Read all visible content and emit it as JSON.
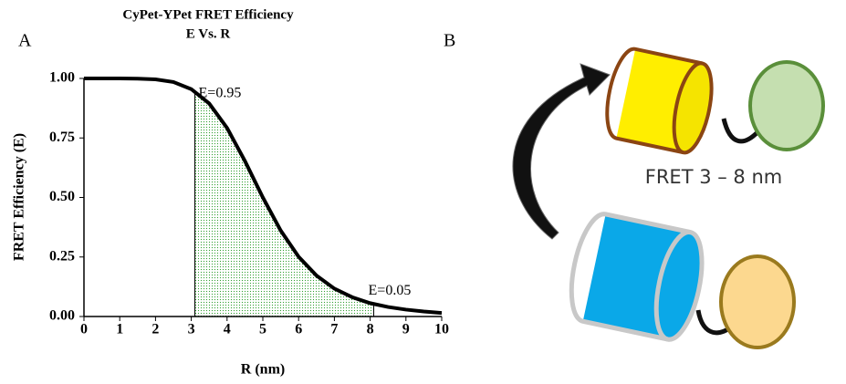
{
  "chart_data": {
    "type": "line",
    "title": "CyPet-YPet FRET  Efficiency",
    "subtitle": "E Vs. R",
    "x_label": "R (nm)",
    "y_label": "FRET Efficiency  (E)",
    "x": [
      0,
      0.5,
      1,
      1.5,
      2,
      2.5,
      3,
      3.5,
      4,
      4.5,
      5,
      5.5,
      6,
      6.5,
      7,
      7.5,
      8,
      8.5,
      9,
      9.5,
      10
    ],
    "series": [
      {
        "color": "#000000",
        "values": [
          1,
          1.0,
          1.0,
          0.999,
          0.996,
          0.985,
          0.955,
          0.895,
          0.792,
          0.653,
          0.5,
          0.361,
          0.251,
          0.172,
          0.117,
          0.081,
          0.056,
          0.04,
          0.029,
          0.021,
          0.015
        ]
      }
    ],
    "xlim": [
      0,
      10
    ],
    "ylim": [
      0,
      1
    ],
    "xticks": [
      0,
      1,
      2,
      3,
      4,
      5,
      6,
      7,
      8,
      9,
      10
    ],
    "yticks": [
      {
        "value": 0,
        "label": "0.00"
      },
      {
        "value": 0.25,
        "label": "0.25"
      },
      {
        "value": 0.5,
        "label": "0.50"
      },
      {
        "value": 0.75,
        "label": "0.75"
      },
      {
        "value": 1,
        "label": "1.00"
      }
    ],
    "shade_range": [
      3.1,
      8.1
    ],
    "shade_color": "#2e9e2e",
    "annotations": [
      "E=0.95",
      "E=0.05"
    ]
  },
  "panel_labels": [
    "A",
    "B"
  ],
  "diagram": {
    "label": "FRET 3 – 8 nm"
  }
}
